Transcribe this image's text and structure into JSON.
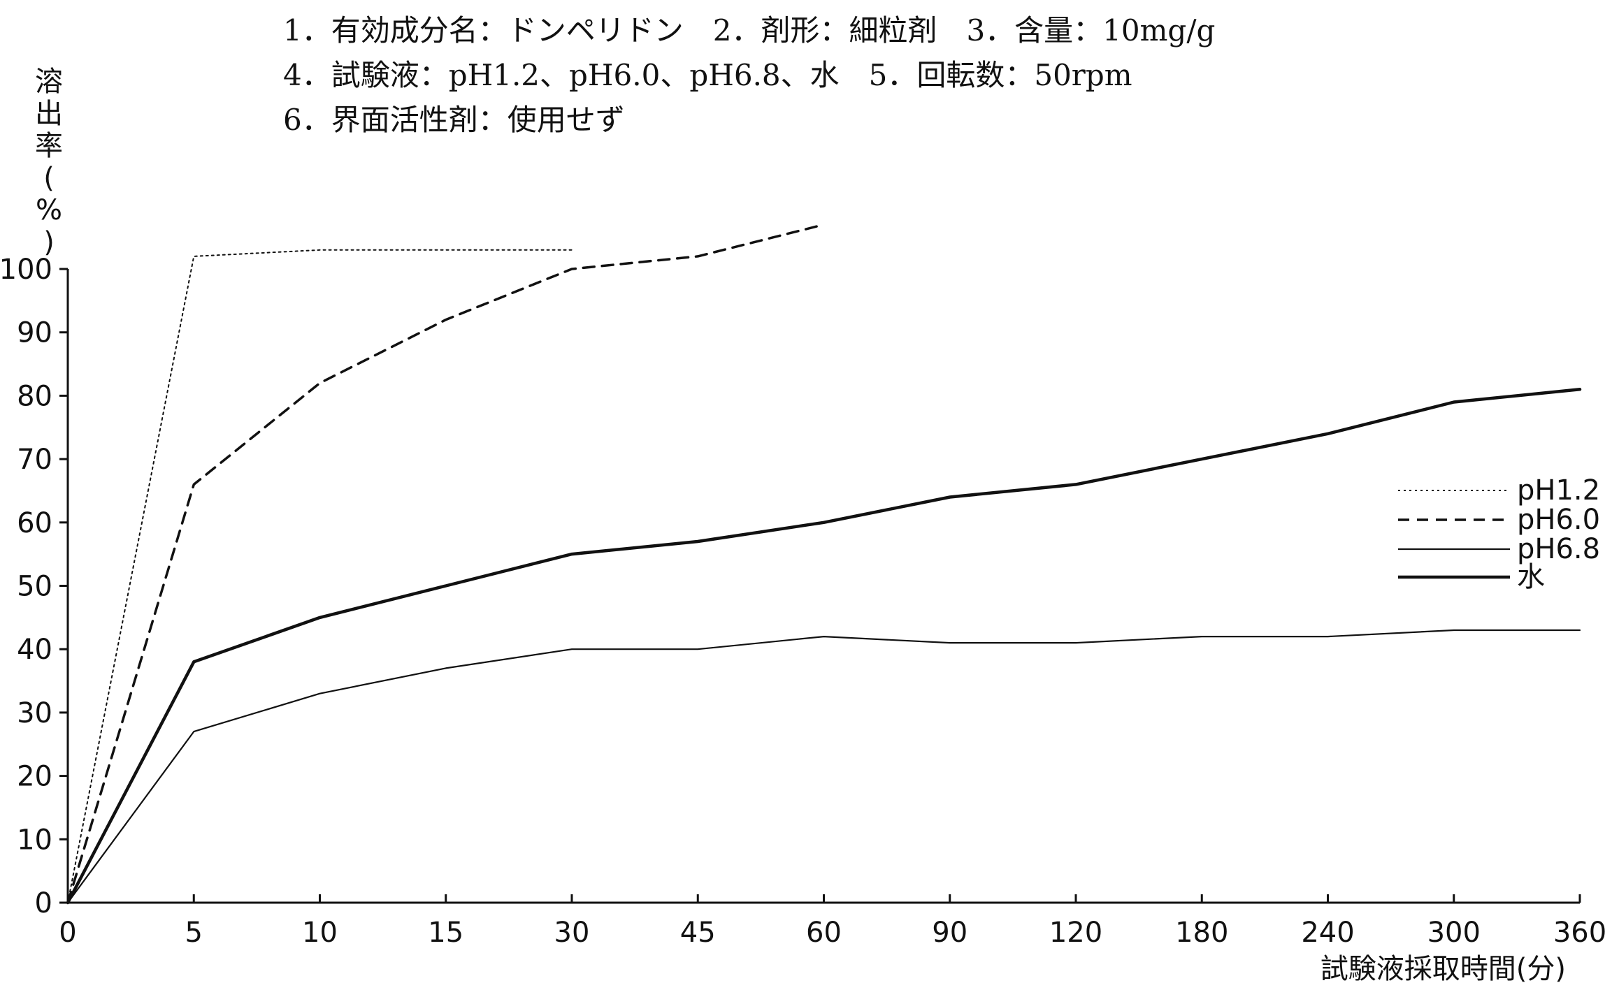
{
  "chart_data": {
    "type": "line",
    "header_lines": [
      "1．有効成分名：ドンペリドン　2．剤形：細粒剤　3．含量：10mg/g",
      "4．試験液：pH1.2、pH6.0、pH6.8、水　5．回転数：50rpm",
      "6．界面活性剤：使用せず"
    ],
    "xlabel": "試験液採取時間(分)",
    "ylabel": "溶出率(%)",
    "x_ticks": [
      "0",
      "5",
      "10",
      "15",
      "30",
      "45",
      "60",
      "90",
      "120",
      "180",
      "240",
      "300",
      "360"
    ],
    "ylim": [
      0,
      100
    ],
    "y_ticks": [
      0,
      10,
      20,
      30,
      40,
      50,
      60,
      70,
      80,
      90,
      100
    ],
    "grid": false,
    "legend_position": "right",
    "series": [
      {
        "name": "pH1.2",
        "style": "dotted",
        "x": [
          "0",
          "5",
          "10",
          "15",
          "30"
        ],
        "values": [
          0,
          102,
          103,
          103,
          103
        ]
      },
      {
        "name": "pH6.0",
        "style": "dashed",
        "x": [
          "0",
          "5",
          "10",
          "15",
          "30",
          "45",
          "60"
        ],
        "values": [
          0,
          66,
          82,
          92,
          100,
          102,
          107
        ]
      },
      {
        "name": "pH6.8",
        "style": "thin",
        "x": [
          "0",
          "5",
          "10",
          "15",
          "30",
          "45",
          "60",
          "90",
          "120",
          "180",
          "240",
          "300",
          "360"
        ],
        "values": [
          0,
          27,
          33,
          37,
          40,
          40,
          42,
          41,
          41,
          42,
          42,
          43,
          43
        ]
      },
      {
        "name": "水",
        "style": "thick",
        "x": [
          "0",
          "5",
          "10",
          "15",
          "30",
          "45",
          "60",
          "90",
          "120",
          "180",
          "240",
          "300",
          "360"
        ],
        "values": [
          0,
          38,
          45,
          50,
          55,
          57,
          60,
          64,
          66,
          70,
          74,
          79,
          81
        ]
      }
    ]
  }
}
